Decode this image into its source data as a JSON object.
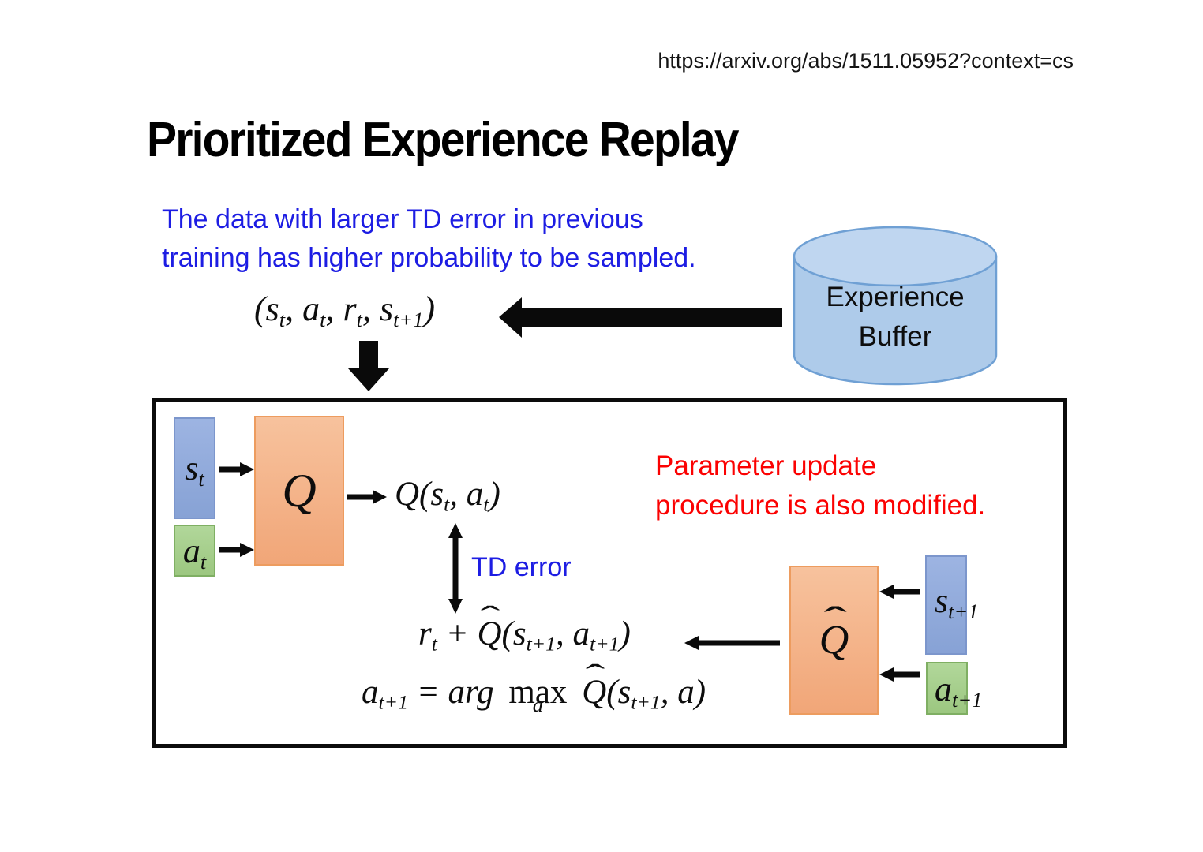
{
  "page": {
    "url": "https://arxiv.org/abs/1511.05952?context=cs",
    "title": "Prioritized Experience Replay"
  },
  "notes": {
    "sampling_note_line1": "The data with larger TD error in previous",
    "sampling_note_line2": "training has higher probability to be sampled.",
    "update_note_line1": "Parameter update",
    "update_note_line2": "procedure is also modified.",
    "td_error_label": "TD error"
  },
  "buffer": {
    "label_line1": "Experience",
    "label_line2": "Buffer"
  },
  "math": {
    "transition_tuple": "(s_{t}, a_{t}, r_{t}, s_{t+1})",
    "q_output": "Q(s_{t}, a_{t})",
    "target_value": "r_{t} +  \\hat{Q}(s_{t+1}, a_{t+1})",
    "argmax_equation": "a_{t+1} = arg \\stack{max}{a} \\hat{Q}(s_{t+1}, a)",
    "state_label": "s_{t}",
    "action_label": "a_{t}",
    "q_label": "Q",
    "q_hat_label": "\\hat{Q}",
    "next_state_label": "s_{t+1}",
    "next_action_label": "a_{t+1}"
  },
  "colors": {
    "note_blue": "#1d1de3",
    "note_red": "#fb0202",
    "state_fill": "#8faadc",
    "state_border": "#7c96cc",
    "action_fill": "#a8d08d",
    "action_border": "#7faf63",
    "network_fill_top": "#f7c29d",
    "network_fill_bottom": "#f1a678",
    "network_border": "#ed9c5f",
    "buffer_fill": "#aecbea",
    "buffer_top_fill": "#bfd6f0",
    "buffer_border": "#6fa0d4",
    "arrow_black": "#0a0a0a"
  }
}
